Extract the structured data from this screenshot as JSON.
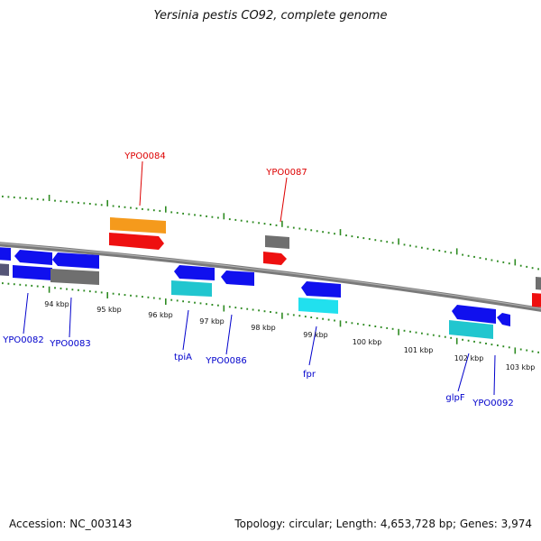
{
  "title": "Yersinia pestis CO92, complete genome",
  "accession": "Accession: NC_003143",
  "stats": "Topology: circular; Length: 4,653,728 bp; Genes: 3,974",
  "colors": {
    "backbone": "#7a7a7a",
    "tick": "#2e8b22",
    "cds_plus": "#1010ee",
    "cds_minus": "#1010ee",
    "orange": "#f59a1c",
    "red": "#ee1010",
    "gray": "#6f6f6f",
    "cyan": "#21c6cf",
    "label_red": "#dd0000",
    "label_blue": "#0000cc",
    "text": "#111111"
  },
  "kbp_labels": [
    "94 kbp",
    "95 kbp",
    "96 kbp",
    "97 kbp",
    "98 kbp",
    "99 kbp",
    "100 kbp",
    "101 kbp",
    "102 kbp",
    "103 kbp"
  ],
  "gene_labels_top": [
    "YPO0084",
    "YPO0087"
  ],
  "gene_labels_bottom": [
    "YPO0082",
    "YPO0083",
    "tpiA",
    "YPO0086",
    "fpr",
    "glpF",
    "YPO0092"
  ]
}
